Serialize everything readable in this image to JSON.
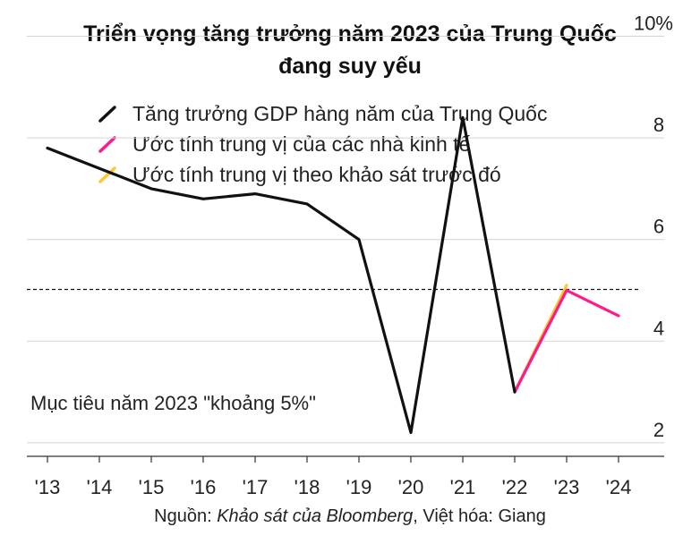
{
  "title_line1": "Triển vọng tăng trưởng năm 2023 của Trung Quốc",
  "title_line2": "đang suy yếu",
  "chart_data": {
    "type": "line",
    "x": [
      "'13",
      "'14",
      "'15",
      "'16",
      "'17",
      "'18",
      "'19",
      "'20",
      "'21",
      "'22",
      "'23",
      "'24"
    ],
    "y_ticks": [
      "10%",
      "8",
      "6",
      "4",
      "2"
    ],
    "y_tick_values": [
      10,
      8,
      6,
      4,
      2
    ],
    "ylim": [
      1.5,
      10.5
    ],
    "series": [
      {
        "name": "Tăng trưởng GDP hàng năm của Trung Quốc",
        "color": "#111111",
        "x": [
          "'13",
          "'14",
          "'15",
          "'16",
          "'17",
          "'18",
          "'19",
          "'20",
          "'21",
          "'22"
        ],
        "values": [
          7.8,
          7.4,
          7.0,
          6.8,
          6.9,
          6.7,
          6.0,
          2.2,
          8.4,
          3.0
        ]
      },
      {
        "name": "Ước tính trung vị của các nhà kinh tế",
        "color": "#ff1a8c",
        "x": [
          "'22",
          "'23",
          "'24"
        ],
        "values": [
          3.0,
          5.0,
          4.5
        ]
      },
      {
        "name": "Ước tính trung vị theo khảo sát trước đó",
        "color": "#ffc72c",
        "x": [
          "'22",
          "'23"
        ],
        "values": [
          3.0,
          5.1
        ]
      }
    ],
    "reference_line": {
      "value": 5,
      "label": "Mục tiêu năm 2023 \"khoảng 5%\""
    },
    "grid": true,
    "legend_placement": "top-left"
  },
  "footer": {
    "prefix": "Nguồn: ",
    "source": "Khảo sát của Bloomberg",
    "suffix": ", Việt hóa: Giang"
  }
}
